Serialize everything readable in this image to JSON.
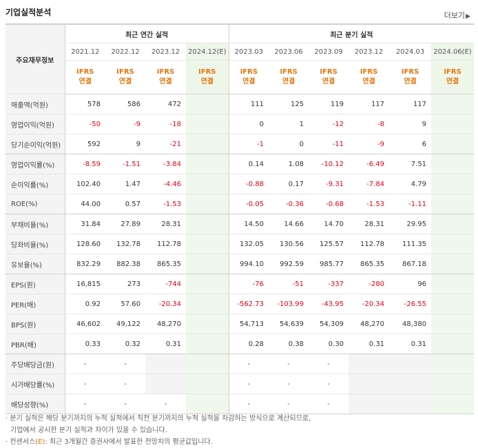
{
  "header": {
    "title": "기업실적분석",
    "more_label": "더보기",
    "more_arrow": "▶"
  },
  "table": {
    "corner_label": "주요재무정보",
    "group_annual": "최근 연간 실적",
    "group_quarter": "최근 분기 실적",
    "annual_periods": [
      "2021.12",
      "2022.12",
      "2023.12",
      "2024.12(E)"
    ],
    "quarter_periods": [
      "2023.03",
      "2023.06",
      "2023.09",
      "2023.12",
      "2024.03",
      "2024.06(E)"
    ],
    "basis_top": "IFRS",
    "basis_bottom": "연결",
    "rows": [
      {
        "label": "매출액(억원)",
        "annual": [
          "578",
          "586",
          "472",
          ""
        ],
        "quarter": [
          "111",
          "125",
          "119",
          "117",
          "117",
          ""
        ]
      },
      {
        "label": "영업이익(억원)",
        "annual": [
          "-50",
          "-9",
          "-18",
          ""
        ],
        "quarter": [
          "0",
          "1",
          "-12",
          "-8",
          "9",
          ""
        ]
      },
      {
        "label": "당기순이익(억원)",
        "annual": [
          "592",
          "9",
          "-21",
          ""
        ],
        "quarter": [
          "-1",
          "0",
          "-11",
          "-9",
          "6",
          ""
        ]
      },
      {
        "label": "영업이익률(%)",
        "annual": [
          "-8.59",
          "-1.51",
          "-3.84",
          ""
        ],
        "quarter": [
          "0.14",
          "1.08",
          "-10.12",
          "-6.49",
          "7.51",
          ""
        ]
      },
      {
        "label": "순이익률(%)",
        "annual": [
          "102.40",
          "1.47",
          "-4.46",
          ""
        ],
        "quarter": [
          "-0.88",
          "0.17",
          "-9.31",
          "-7.84",
          "4.79",
          ""
        ]
      },
      {
        "label": "ROE(%)",
        "annual": [
          "44.00",
          "0.57",
          "-1.53",
          ""
        ],
        "quarter": [
          "-0.05",
          "-0.36",
          "-0.68",
          "-1.53",
          "-1.11",
          ""
        ]
      },
      {
        "label": "부채비율(%)",
        "annual": [
          "31.84",
          "27.89",
          "28.31",
          ""
        ],
        "quarter": [
          "14.50",
          "14.66",
          "14.70",
          "28.31",
          "29.95",
          ""
        ]
      },
      {
        "label": "당좌비율(%)",
        "annual": [
          "128.60",
          "132.78",
          "112.78",
          ""
        ],
        "quarter": [
          "132.05",
          "130.56",
          "125.57",
          "112.78",
          "111.35",
          ""
        ]
      },
      {
        "label": "유보율(%)",
        "annual": [
          "832.29",
          "882.38",
          "865.35",
          ""
        ],
        "quarter": [
          "994.10",
          "992.59",
          "985.77",
          "865.35",
          "867.18",
          ""
        ]
      },
      {
        "label": "EPS(원)",
        "annual": [
          "16,815",
          "273",
          "-744",
          ""
        ],
        "quarter": [
          "-76",
          "-51",
          "-337",
          "-280",
          "96",
          ""
        ]
      },
      {
        "label": "PER(배)",
        "annual": [
          "0.92",
          "57.60",
          "-20.34",
          ""
        ],
        "quarter": [
          "-562.73",
          "-103.99",
          "-43.95",
          "-20.34",
          "-26.55",
          ""
        ]
      },
      {
        "label": "BPS(원)",
        "annual": [
          "46,602",
          "49,122",
          "48,270",
          ""
        ],
        "quarter": [
          "54,713",
          "54,639",
          "54,309",
          "48,270",
          "48,380",
          ""
        ]
      },
      {
        "label": "PBR(배)",
        "annual": [
          "0.33",
          "0.32",
          "0.31",
          ""
        ],
        "quarter": [
          "0.28",
          "0.38",
          "0.30",
          "0.31",
          "0.31",
          ""
        ]
      },
      {
        "label": "주당배당금(원)",
        "annual": [
          "-",
          "-",
          "",
          ""
        ],
        "quarter": [
          "-",
          "-",
          "-",
          "",
          "",
          ""
        ]
      },
      {
        "label": "시가배당률(%)",
        "annual": [
          "-",
          "-",
          "",
          ""
        ],
        "quarter": [
          "-",
          "-",
          "-",
          "",
          "",
          ""
        ]
      },
      {
        "label": "배당성향(%)",
        "annual": [
          "-",
          "-",
          "-",
          ""
        ],
        "quarter": [
          "-",
          "-",
          "-",
          "",
          "",
          ""
        ]
      }
    ]
  },
  "notes": {
    "line1": "· 분기 실적은 해당 분기까지의 누적 실적에서 직전 분기까지의 누적 실적을 차감하는 방식으로 계산되므로,",
    "line2": "  기업에서 공시한 분기 실적과 차이가 있을 수 있습니다.",
    "line3_prefix": "· 컨센서스",
    "line3_mark": "(E)",
    "line3_suffix": ": 최근 3개월간 증권사에서 발표한 전망치의 평균값입니다."
  },
  "colors": {
    "negative": "#e60012",
    "ifrs": "#e8750c",
    "estimate_bg": "#f0f7ed"
  }
}
